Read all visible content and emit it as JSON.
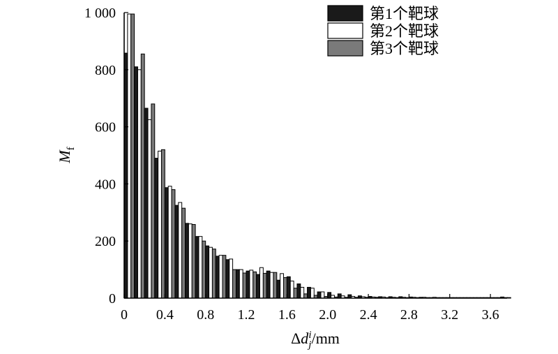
{
  "chart_data": {
    "type": "bar",
    "xlabel": "Δd_j^i/mm",
    "ylabel": "M_f",
    "xlim": [
      0,
      3.75
    ],
    "ylim": [
      0,
      1000
    ],
    "xticks": [
      0,
      0.4,
      0.8,
      1.2,
      1.6,
      2.0,
      2.4,
      2.8,
      3.2,
      3.6
    ],
    "xtick_labels": [
      "0",
      "0.4",
      "0.8",
      "1.2",
      "1.6",
      "2.0",
      "2.4",
      "2.8",
      "3.2",
      "3.6"
    ],
    "yticks": [
      0,
      200,
      400,
      600,
      800,
      1000
    ],
    "ytick_labels": [
      "0",
      "200",
      "400",
      "600",
      "800",
      "1 000"
    ],
    "bin_width": 0.1,
    "bin_starts": [
      0,
      0.1,
      0.2,
      0.3,
      0.4,
      0.5,
      0.6,
      0.7,
      0.8,
      0.9,
      1.0,
      1.1,
      1.2,
      1.3,
      1.4,
      1.5,
      1.6,
      1.7,
      1.8,
      1.9,
      2.0,
      2.1,
      2.2,
      2.3,
      2.4,
      2.5,
      2.6,
      2.7,
      2.8,
      2.9,
      3.0,
      3.1,
      3.2,
      3.3,
      3.4,
      3.5,
      3.6,
      3.7
    ],
    "legend_position": "top-right",
    "series": [
      {
        "name": "第1个靶球",
        "color": "#1a1a1a",
        "values": [
          858,
          810,
          665,
          490,
          387,
          325,
          262,
          216,
          183,
          147,
          135,
          100,
          95,
          83,
          95,
          63,
          75,
          50,
          38,
          22,
          20,
          15,
          12,
          8,
          6,
          5,
          5,
          5,
          4,
          3,
          2,
          2,
          2,
          2,
          2,
          2,
          2,
          4
        ]
      },
      {
        "name": "第2个靶球",
        "color": "#ffffff",
        "values": [
          995,
          800,
          625,
          515,
          392,
          335,
          260,
          216,
          178,
          150,
          137,
          100,
          98,
          107,
          90,
          86,
          60,
          38,
          35,
          22,
          10,
          8,
          6,
          5,
          4,
          4,
          3,
          3,
          3,
          3,
          3,
          2,
          2,
          2,
          2,
          2,
          2,
          2
        ]
      },
      {
        "name": "第3个靶球",
        "color": "#7a7a7a",
        "values": [
          995,
          855,
          680,
          520,
          380,
          315,
          258,
          200,
          172,
          150,
          100,
          88,
          92,
          87,
          90,
          72,
          35,
          15,
          10,
          6,
          4,
          3,
          3,
          3,
          3,
          2,
          2,
          2,
          2,
          2,
          2,
          2,
          2,
          2,
          2,
          2,
          2,
          2
        ]
      }
    ]
  }
}
